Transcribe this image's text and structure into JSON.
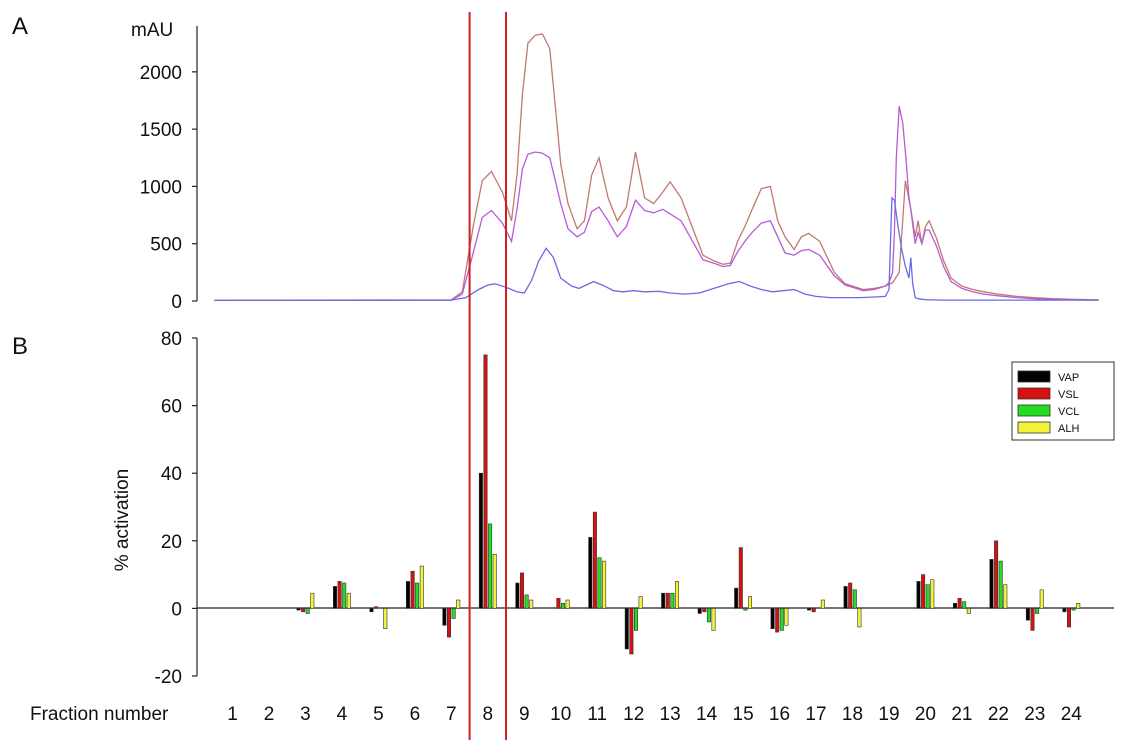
{
  "chart_data": [
    {
      "panel_label": "A",
      "type": "line",
      "ylabel": "mAU",
      "ylim": [
        0,
        2400
      ],
      "yticks": [
        0,
        500,
        1000,
        1500,
        2000
      ],
      "x_unit": "fraction number",
      "xlim": [
        0.5,
        24.75
      ],
      "series": [
        {
          "color": "#c07870",
          "x": [
            0.5,
            7.0,
            7.3,
            7.6,
            7.85,
            8.1,
            8.4,
            8.65,
            8.8,
            8.95,
            9.1,
            9.3,
            9.5,
            9.7,
            9.85,
            10.0,
            10.2,
            10.45,
            10.65,
            10.85,
            11.05,
            11.3,
            11.55,
            11.8,
            12.05,
            12.3,
            12.55,
            12.8,
            13.0,
            13.3,
            13.6,
            13.9,
            14.2,
            14.45,
            14.65,
            14.85,
            15.05,
            15.25,
            15.5,
            15.75,
            15.95,
            16.15,
            16.4,
            16.6,
            16.8,
            17.1,
            17.5,
            17.8,
            18.0,
            18.3,
            18.6,
            18.9,
            19.1,
            19.18,
            19.28,
            19.45,
            19.6,
            19.72,
            19.8,
            19.9,
            20.0,
            20.1,
            20.3,
            20.5,
            20.7,
            21.0,
            21.3,
            21.6,
            22.0,
            22.5,
            23.0,
            23.5,
            24.0,
            24.75
          ],
          "y": [
            5,
            10,
            80,
            650,
            1050,
            1130,
            950,
            700,
            1100,
            1800,
            2250,
            2320,
            2330,
            2200,
            1700,
            1200,
            850,
            630,
            700,
            1100,
            1250,
            900,
            700,
            820,
            1300,
            900,
            850,
            950,
            1040,
            900,
            650,
            400,
            350,
            320,
            330,
            520,
            650,
            800,
            980,
            1000,
            700,
            560,
            450,
            560,
            590,
            520,
            250,
            150,
            130,
            100,
            110,
            130,
            160,
            200,
            250,
            1050,
            800,
            560,
            700,
            500,
            650,
            700,
            550,
            350,
            200,
            130,
            100,
            80,
            60,
            40,
            30,
            20,
            15,
            10
          ]
        },
        {
          "color": "#b85ad8",
          "x": [
            0.5,
            7.0,
            7.3,
            7.6,
            7.85,
            8.1,
            8.4,
            8.65,
            8.8,
            8.95,
            9.1,
            9.3,
            9.5,
            9.7,
            9.85,
            10.0,
            10.2,
            10.45,
            10.65,
            10.85,
            11.05,
            11.3,
            11.55,
            11.8,
            12.05,
            12.3,
            12.55,
            12.8,
            13.0,
            13.3,
            13.6,
            13.9,
            14.2,
            14.45,
            14.65,
            14.85,
            15.05,
            15.25,
            15.5,
            15.75,
            15.95,
            16.15,
            16.4,
            16.6,
            16.8,
            17.1,
            17.5,
            17.8,
            18.0,
            18.3,
            18.6,
            18.9,
            19.0,
            19.1,
            19.15,
            19.2,
            19.28,
            19.38,
            19.45,
            19.55,
            19.6,
            19.72,
            19.8,
            19.9,
            20.0,
            20.1,
            20.3,
            20.5,
            20.7,
            21.0,
            21.3,
            21.6,
            22.0,
            22.5,
            23.0,
            23.5,
            24.0,
            24.75
          ],
          "y": [
            5,
            8,
            60,
            420,
            730,
            790,
            680,
            520,
            800,
            1150,
            1280,
            1300,
            1290,
            1250,
            1050,
            850,
            630,
            560,
            600,
            780,
            820,
            700,
            560,
            650,
            880,
            790,
            770,
            800,
            760,
            700,
            530,
            360,
            330,
            300,
            310,
            430,
            520,
            600,
            680,
            700,
            560,
            420,
            400,
            440,
            450,
            400,
            220,
            140,
            120,
            90,
            100,
            130,
            160,
            250,
            600,
            1250,
            1700,
            1550,
            1300,
            900,
            800,
            500,
            600,
            500,
            620,
            620,
            480,
            300,
            170,
            110,
            80,
            60,
            45,
            30,
            20,
            15,
            10,
            8
          ]
        },
        {
          "color": "#6a6ae6",
          "x": [
            0.5,
            7.0,
            7.4,
            7.75,
            8.0,
            8.2,
            8.5,
            8.8,
            9.0,
            9.2,
            9.4,
            9.6,
            9.8,
            10.0,
            10.3,
            10.5,
            10.7,
            10.9,
            11.2,
            11.45,
            11.7,
            12.0,
            12.3,
            12.7,
            13.0,
            13.4,
            13.8,
            14.2,
            14.6,
            14.9,
            15.2,
            15.5,
            15.8,
            16.1,
            16.4,
            16.7,
            17.0,
            17.4,
            17.8,
            18.2,
            18.6,
            18.9,
            19.0,
            19.08,
            19.15,
            19.25,
            19.35,
            19.45,
            19.55,
            19.6,
            19.65,
            19.72,
            19.8,
            19.9,
            20.0,
            20.1,
            20.2,
            20.5,
            21.0,
            22.0,
            23.0,
            24.75
          ],
          "y": [
            5,
            8,
            30,
            100,
            140,
            150,
            120,
            80,
            70,
            180,
            350,
            460,
            380,
            200,
            130,
            110,
            140,
            170,
            130,
            90,
            80,
            90,
            80,
            85,
            70,
            60,
            70,
            110,
            150,
            170,
            130,
            100,
            80,
            90,
            100,
            60,
            40,
            30,
            30,
            30,
            35,
            40,
            100,
            900,
            880,
            650,
            450,
            300,
            200,
            380,
            150,
            30,
            20,
            15,
            12,
            10,
            10,
            8,
            8,
            8,
            8,
            8
          ]
        }
      ]
    },
    {
      "panel_label": "B",
      "type": "bar",
      "ylabel": "% activation",
      "xlabel": "Fraction number",
      "ylim": [
        -20,
        80
      ],
      "yticks": [
        -20,
        0,
        20,
        40,
        60,
        80
      ],
      "categories": [
        "1",
        "2",
        "3",
        "4",
        "5",
        "6",
        "7",
        "8",
        "9",
        "10",
        "11",
        "12",
        "13",
        "14",
        "15",
        "16",
        "17",
        "18",
        "19",
        "20",
        "21",
        "22",
        "23",
        "24"
      ],
      "legend_position": "top-right",
      "series": [
        {
          "name": "VAP",
          "color": "#000000",
          "values": [
            0,
            0,
            -0.5,
            6.5,
            -1,
            8,
            -5,
            40,
            7.5,
            0,
            21,
            -12,
            4.5,
            -1.5,
            6,
            -6,
            -0.5,
            6.5,
            0,
            8,
            1.5,
            14.5,
            -3.5,
            -1
          ]
        },
        {
          "name": "VSL",
          "color": "#d81010",
          "values": [
            0,
            0,
            -1,
            8,
            0.5,
            11,
            -8.5,
            75,
            10.5,
            3,
            28.5,
            -13.5,
            4.5,
            -1,
            18,
            -7,
            -1,
            7.5,
            0,
            10,
            3,
            20,
            -6.5,
            -5.5
          ]
        },
        {
          "name": "VCL",
          "color": "#22dd22",
          "values": [
            0,
            0,
            -1.5,
            7.5,
            0,
            7.5,
            -3,
            25,
            4,
            1.5,
            15,
            -6.5,
            4.5,
            -4,
            -0.5,
            -6.5,
            0,
            5.5,
            0,
            7,
            2,
            14,
            -1.5,
            -0.5
          ]
        },
        {
          "name": "ALH",
          "color": "#f2f238",
          "values": [
            0,
            0,
            4.5,
            4.5,
            -6,
            12.5,
            2.5,
            16,
            2.5,
            2.5,
            14,
            3.5,
            8,
            -6.5,
            3.5,
            -5,
            2.5,
            -5.5,
            0,
            8.5,
            -1.5,
            7,
            5.5,
            1.5
          ]
        }
      ]
    }
  ],
  "highlight_band": {
    "from_fraction": 7.5,
    "to_fraction": 8.5,
    "color": "#cc2222"
  }
}
